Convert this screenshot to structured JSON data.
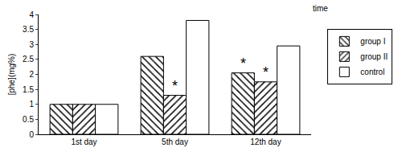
{
  "chart_data": {
    "type": "bar",
    "y_label": "[phe](mg%)",
    "x_label": "time",
    "categories": [
      "1st day",
      "5th day",
      "12th day"
    ],
    "series": [
      {
        "name": "group I",
        "color": "#ffffff",
        "marker": "backslash",
        "values": [
          1.0,
          2.6,
          2.05
        ]
      },
      {
        "name": "group II",
        "color": "#ffffff",
        "marker": "slash",
        "values": [
          1.0,
          1.3,
          1.75
        ]
      },
      {
        "name": "control",
        "color": "#ffffff",
        "marker": "none",
        "values": [
          1.0,
          3.8,
          2.95
        ]
      }
    ],
    "annotations": [
      {
        "text": "*",
        "category": "5th day",
        "series": "group II"
      },
      {
        "text": "*",
        "category": "12th day",
        "series": "group I"
      },
      {
        "text": "*",
        "category": "12th day",
        "series": "group II"
      }
    ],
    "ylim": [
      0,
      4
    ],
    "yticks": [
      0,
      0.5,
      1,
      1.5,
      2,
      2.5,
      3,
      3.5,
      4
    ],
    "grid": false,
    "legend": "right"
  }
}
